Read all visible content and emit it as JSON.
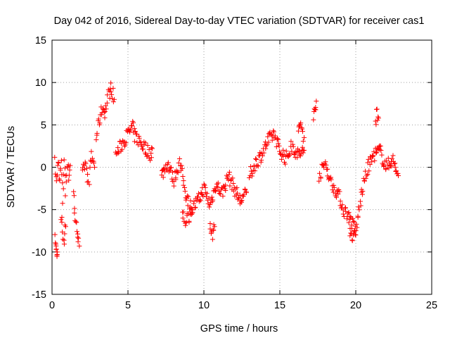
{
  "chart_data": {
    "type": "scatter",
    "title": "Day 042 of 2016, Sidereal Day-to-day VTEC variation (SDTVAR) for receiver cas1",
    "xlabel": "GPS time / hours",
    "ylabel": "SDTVAR / TECUs",
    "xlim": [
      0,
      25
    ],
    "ylim": [
      -15,
      15
    ],
    "xticks": [
      0,
      5,
      10,
      15,
      20,
      25
    ],
    "yticks": [
      -15,
      -10,
      -5,
      0,
      5,
      10,
      15
    ],
    "xtick_labels": [
      "0",
      "5",
      "10",
      "15",
      "20",
      "25"
    ],
    "ytick_labels": [
      "-15",
      "-10",
      "-5",
      "0",
      "5",
      "10",
      "15"
    ],
    "grid": true,
    "marker": "+",
    "series": [
      {
        "name": "cas1",
        "color": "#ff0000",
        "segments": [
          {
            "x": [
              0.2,
              0.3,
              0.4,
              0.5,
              0.6,
              0.7,
              0.8,
              0.9,
              1.0,
              1.1,
              1.2
            ],
            "y": [
              0.5,
              -2,
              1.0,
              -1.5,
              0.5,
              -4,
              1.2,
              -3,
              0.8,
              -1,
              0.2
            ]
          },
          {
            "x": [
              0.2,
              0.25,
              0.3,
              0.35
            ],
            "y": [
              -8,
              -9.5,
              -10.2,
              -10
            ]
          },
          {
            "x": [
              0.6,
              0.7,
              0.8,
              0.9
            ],
            "y": [
              -6,
              -7.5,
              -8.5,
              -7
            ]
          },
          {
            "x": [
              1.4,
              1.5,
              1.6,
              1.7,
              1.8
            ],
            "y": [
              -3.5,
              -5,
              -6.5,
              -8.5,
              -9.3
            ]
          },
          {
            "x": [
              2.0,
              2.2,
              2.4,
              2.6,
              2.8
            ],
            "y": [
              -1,
              0.5,
              -2,
              1.5,
              0
            ]
          },
          {
            "x": [
              2.9,
              3.1,
              3.3,
              3.5,
              3.7,
              3.9,
              4.1
            ],
            "y": [
              3.5,
              5.5,
              7.0,
              6.5,
              8.5,
              9.5,
              8.0
            ]
          },
          {
            "x": [
              4.2,
              5.3,
              5.4,
              6.5,
              6.6
            ],
            "y": [
              1.5,
              4.8,
              3.8,
              1.5,
              2.2
            ]
          },
          {
            "x": [
              7.2,
              7.6,
              8.0,
              8.4,
              8.8,
              9.2,
              9.6,
              10.0,
              10.4,
              10.8,
              11.2,
              11.6,
              12.0,
              12.4,
              12.8
            ],
            "y": [
              -1,
              0.5,
              -1.5,
              0.5,
              -3,
              -5,
              -4,
              -2.5,
              -4.5,
              -2,
              -3,
              -1,
              -2.5,
              -4,
              -3
            ]
          },
          {
            "x": [
              8.6,
              8.8,
              9.0,
              9.2
            ],
            "y": [
              -5.5,
              -6.3,
              -5.8,
              -5
            ]
          },
          {
            "x": [
              10.4,
              10.5,
              10.6,
              10.7
            ],
            "y": [
              -6.5,
              -7.5,
              -8.2,
              -7
            ]
          },
          {
            "x": [
              13.0,
              13.4,
              13.8,
              14.2,
              14.6,
              15.0,
              15.4,
              15.8,
              16.2,
              16.6
            ],
            "y": [
              -1,
              0.5,
              1.5,
              3,
              4,
              2,
              1,
              2.5,
              1.5,
              2
            ]
          },
          {
            "x": [
              16.2,
              16.4,
              16.6
            ],
            "y": [
              4.0,
              5.2,
              3.5
            ]
          },
          {
            "x": [
              17.2,
              17.3,
              17.4
            ],
            "y": [
              5.5,
              7.0,
              7.8
            ]
          },
          {
            "x": [
              17.6,
              18.0,
              18.4,
              18.8,
              19.2,
              19.6,
              20.0,
              20.4,
              20.8,
              21.2,
              21.6,
              22.0,
              22.4,
              22.8
            ],
            "y": [
              -1,
              0.5,
              -2,
              -3,
              -5,
              -6,
              -7.5,
              -3,
              0,
              1.5,
              2,
              0,
              1,
              -1
            ]
          },
          {
            "x": [
              19.6,
              19.8,
              20.0
            ],
            "y": [
              -7.5,
              -8.5,
              -8.0
            ]
          },
          {
            "x": [
              21.3,
              21.4,
              21.5
            ],
            "y": [
              5.5,
              6.5,
              5.8
            ]
          }
        ]
      }
    ]
  }
}
